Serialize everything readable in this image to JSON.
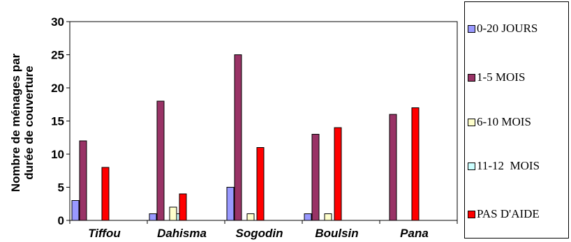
{
  "chart_data": {
    "type": "bar",
    "categories": [
      "Tiffou",
      "Dahisma",
      "Sogodin",
      "Boulsin",
      "Pana"
    ],
    "series": [
      {
        "name": "0-20 JOURS",
        "values": [
          3,
          1,
          5,
          1,
          0
        ],
        "color": "#9999ff"
      },
      {
        "name": "1-5 MOIS",
        "values": [
          12,
          18,
          25,
          13,
          16
        ],
        "color": "#993366"
      },
      {
        "name": "6-10 MOIS",
        "values": [
          0,
          2,
          1,
          1,
          0
        ],
        "color": "#ffffcc"
      },
      {
        "name": "11-12  MOIS",
        "values": [
          0,
          1,
          0,
          0,
          0
        ],
        "color": "#ccffff"
      },
      {
        "name": "PAS D'AIDE",
        "values": [
          8,
          4,
          11,
          14,
          17
        ],
        "color": "#ff0000"
      }
    ],
    "ylabel_line1": "Nombre de ménages par",
    "ylabel_line2": "durée de couverture",
    "ylim": [
      0,
      30
    ],
    "yticks": [
      0,
      5,
      10,
      15,
      20,
      25,
      30
    ],
    "grid": false,
    "legend_position": "right"
  }
}
